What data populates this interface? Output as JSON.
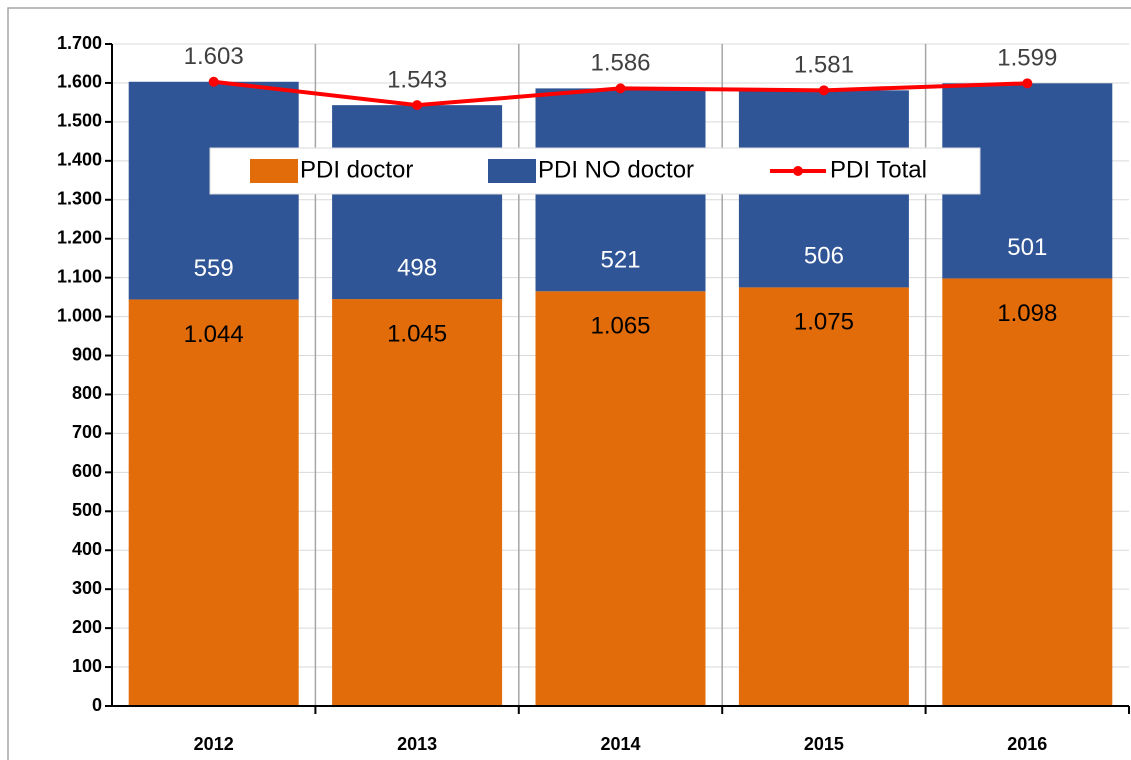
{
  "chart_data": {
    "type": "bar",
    "stacked": true,
    "categories": [
      "2012",
      "2013",
      "2014",
      "2015",
      "2016"
    ],
    "series": [
      {
        "name": "PDI doctor",
        "type": "bar",
        "color": "#e36c0a",
        "values": [
          1044,
          1045,
          1065,
          1075,
          1098
        ],
        "value_labels": [
          "1.044",
          "1.045",
          "1.065",
          "1.075",
          "1.098"
        ]
      },
      {
        "name": "PDI NO doctor",
        "type": "bar",
        "color": "#2f5597",
        "values": [
          559,
          498,
          521,
          506,
          501
        ]
      },
      {
        "name": "PDI Total",
        "type": "line",
        "color": "#ff0000",
        "values": [
          1603,
          1543,
          1586,
          1581,
          1599
        ],
        "value_labels": [
          "1.603",
          "1.543",
          "1.586",
          "1.581",
          "1.599"
        ]
      }
    ],
    "ylim": [
      0,
      1700
    ],
    "yticks": [
      0,
      100,
      200,
      300,
      400,
      500,
      600,
      700,
      800,
      900,
      {
        "value": 1000,
        "label": "1.000"
      },
      {
        "value": 1100,
        "label": "1.100"
      },
      {
        "value": 1200,
        "label": "1.200"
      },
      {
        "value": 1300,
        "label": "1.300"
      },
      {
        "value": 1400,
        "label": "1.400"
      },
      {
        "value": 1500,
        "label": "1.500"
      },
      {
        "value": 1600,
        "label": "1.600"
      },
      {
        "value": 1700,
        "label": "1.700"
      }
    ],
    "grid": true
  }
}
